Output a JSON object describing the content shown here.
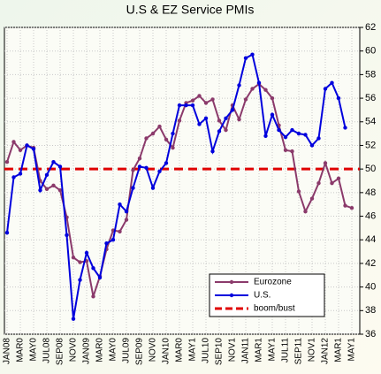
{
  "chart_data": {
    "type": "line",
    "title": "U.S & EZ Service PMIs",
    "categories": [
      "JAN08",
      null,
      "MAR0",
      null,
      "MAY0",
      null,
      "JUL08",
      null,
      "SEP08",
      null,
      "NOV0",
      null,
      "JAN09",
      null,
      "MAR0",
      null,
      "MAY0",
      null,
      "JUL09",
      null,
      "SEP09",
      null,
      "NOV0",
      null,
      "JAN10",
      null,
      "MAR0",
      null,
      "MAY1",
      null,
      "JUL10",
      null,
      "SEP10",
      null,
      "NOV1",
      null,
      "JAN11",
      null,
      "MAR1",
      null,
      "MAY1",
      null,
      "JUL11",
      null,
      "SEP11",
      null,
      "NOV1",
      null,
      "JAN12",
      null,
      "MAR1",
      null,
      "MAY1"
    ],
    "series": [
      {
        "name": "Eurozone",
        "color": "#8b3a6b",
        "values": [
          50.6,
          52.3,
          51.6,
          52.0,
          51.8,
          49.0,
          48.3,
          48.6,
          48.2,
          45.9,
          42.5,
          42.1,
          42.2,
          39.2,
          40.9,
          43.2,
          44.8,
          44.7,
          45.7,
          49.9,
          50.9,
          52.6,
          53.0,
          53.6,
          52.5,
          51.8,
          54.1,
          55.6,
          55.8,
          56.2,
          55.6,
          55.9,
          54.1,
          53.3,
          55.4,
          54.2,
          55.9,
          56.8,
          57.2,
          56.7,
          56.0,
          53.7,
          51.6,
          51.5,
          48.1,
          46.4,
          47.5,
          48.8,
          50.5,
          48.8,
          49.2,
          46.9,
          46.7
        ]
      },
      {
        "name": "U.S.",
        "color": "#0000dd",
        "values": [
          44.6,
          49.3,
          49.6,
          52.0,
          51.7,
          48.2,
          49.5,
          50.6,
          50.2,
          44.4,
          37.3,
          40.6,
          42.9,
          41.6,
          40.8,
          43.7,
          44.0,
          47.0,
          46.4,
          48.4,
          50.2,
          50.1,
          48.4,
          49.8,
          50.5,
          53.0,
          55.4,
          55.4,
          55.4,
          53.8,
          54.3,
          51.5,
          53.2,
          54.3,
          55.0,
          57.1,
          59.4,
          59.7,
          57.3,
          52.8,
          54.6,
          53.3,
          52.7,
          53.3,
          53.0,
          52.9,
          52.0,
          52.6,
          56.8,
          57.3,
          56.0,
          53.5,
          null
        ]
      }
    ],
    "reference_line": {
      "name": "boom/bust",
      "value": 50,
      "color": "#e00000"
    },
    "ylim": [
      36,
      62
    ],
    "yticks": [
      36,
      38,
      40,
      42,
      44,
      46,
      48,
      50,
      52,
      54,
      56,
      58,
      60,
      62
    ],
    "grid": true,
    "legend": "lower right"
  }
}
